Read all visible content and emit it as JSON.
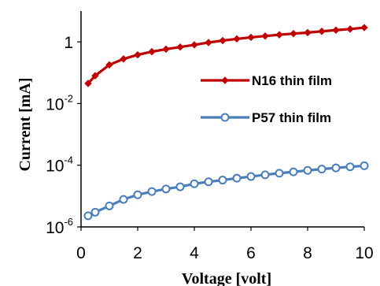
{
  "chart_data": {
    "type": "line",
    "xlabel": "Voltage [volt]",
    "ylabel": "Current  [mA]",
    "xlim": [
      0,
      10
    ],
    "ylim": [
      1e-06,
      10
    ],
    "y_scale": "log",
    "x_ticks": [
      0,
      2,
      4,
      6,
      8,
      10
    ],
    "y_ticks": [
      {
        "value": 1e-06,
        "base": "10",
        "exp": "-6"
      },
      {
        "value": 0.0001,
        "base": "10",
        "exp": "-4"
      },
      {
        "value": 0.01,
        "base": "10",
        "exp": "-2"
      },
      {
        "value": 1,
        "base": "1",
        "exp": ""
      }
    ],
    "legend_position": "center-right",
    "series": [
      {
        "name": "N16 thin film",
        "color": "#c00000",
        "marker": "diamond",
        "x": [
          0.25,
          0.5,
          1,
          1.5,
          2,
          2.5,
          3,
          3.5,
          4,
          4.5,
          5,
          5.5,
          6,
          6.5,
          7,
          7.5,
          8,
          8.5,
          9,
          9.5,
          10
        ],
        "y": [
          0.045,
          0.08,
          0.18,
          0.28,
          0.38,
          0.48,
          0.58,
          0.68,
          0.8,
          0.95,
          1.1,
          1.25,
          1.4,
          1.55,
          1.7,
          1.85,
          2.0,
          2.2,
          2.4,
          2.6,
          2.9
        ]
      },
      {
        "name": "P57 thin film",
        "color": "#4a7ebb",
        "marker": "circle",
        "x": [
          0.25,
          0.5,
          1,
          1.5,
          2,
          2.5,
          3,
          3.5,
          4,
          4.5,
          5,
          5.5,
          6,
          6.5,
          7,
          7.5,
          8,
          8.5,
          9,
          9.5,
          10
        ],
        "y": [
          2.3e-06,
          3e-06,
          4.8e-06,
          7.8e-06,
          1.1e-05,
          1.4e-05,
          1.7e-05,
          2e-05,
          2.5e-05,
          2.9e-05,
          3.3e-05,
          3.8e-05,
          4.3e-05,
          4.9e-05,
          5.5e-05,
          6.1e-05,
          6.8e-05,
          7.5e-05,
          8.2e-05,
          8.9e-05,
          9.6e-05
        ]
      }
    ]
  }
}
